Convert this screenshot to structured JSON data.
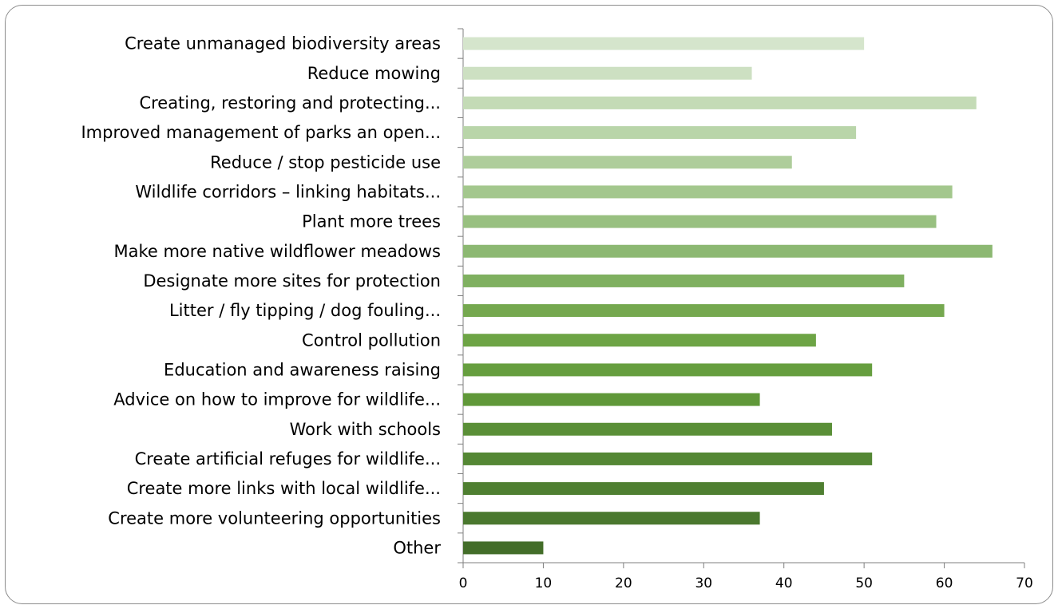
{
  "chart_data": {
    "type": "bar",
    "orientation": "horizontal",
    "title": "",
    "xlabel": "",
    "ylabel": "",
    "categories": [
      "Create unmanaged biodiversity areas",
      "Reduce mowing",
      "Creating, restoring and protecting...",
      "Improved management of parks an open...",
      "Reduce / stop pesticide use",
      "Wildlife corridors – linking habitats...",
      "Plant more trees",
      "Make more native wildflower meadows",
      "Designate more sites for protection",
      "Litter / fly tipping / dog fouling...",
      "Control pollution",
      "Education and awareness raising",
      "Advice on how to improve for wildlife...",
      "Work with schools",
      "Create artificial refuges for wildlife...",
      "Create more links with local wildlife...",
      "Create more volunteering opportunities",
      "Other"
    ],
    "values": [
      50,
      36,
      64,
      49,
      41,
      61,
      59,
      66,
      55,
      60,
      44,
      51,
      37,
      46,
      51,
      45,
      37,
      10
    ],
    "colors": [
      "#d5e5cc",
      "#cde0c2",
      "#c4dbb6",
      "#b9d5a9",
      "#aecd9b",
      "#a3c78d",
      "#98c080",
      "#8cb872",
      "#7fb060",
      "#75a84f",
      "#6da445",
      "#669e3f",
      "#609839",
      "#5a8f37",
      "#548734",
      "#4f7f31",
      "#4a782e",
      "#436d29"
    ],
    "xlim": [
      0,
      70
    ],
    "xticks": [
      0,
      10,
      20,
      30,
      40,
      50,
      60,
      70
    ],
    "grid": false,
    "legend": "none"
  }
}
